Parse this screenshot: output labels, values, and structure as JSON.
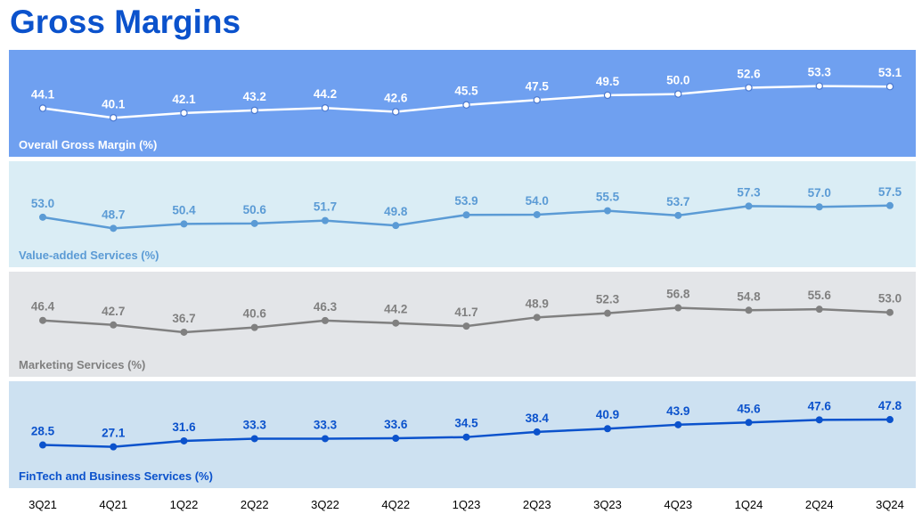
{
  "title": "Gross Margins",
  "chart_data": {
    "type": "line",
    "categories": [
      "3Q21",
      "4Q21",
      "1Q22",
      "2Q22",
      "3Q22",
      "4Q22",
      "1Q23",
      "2Q23",
      "3Q23",
      "4Q23",
      "1Q24",
      "2Q24",
      "3Q24"
    ],
    "panels": [
      {
        "name": "Overall Gross Margin (%)",
        "values": [
          44.1,
          40.1,
          42.1,
          43.2,
          44.2,
          42.6,
          45.5,
          47.5,
          49.5,
          50.0,
          52.6,
          53.3,
          53.1
        ],
        "background": "#6fa0f0",
        "line_color": "#ffffff",
        "label_color": "#ffffff",
        "name_color": "#ffffff",
        "ylim": [
          35,
          58
        ]
      },
      {
        "name": "Value-added Services (%)",
        "values": [
          53.0,
          48.7,
          50.4,
          50.6,
          51.7,
          49.8,
          53.9,
          54.0,
          55.5,
          53.7,
          57.3,
          57.0,
          57.5
        ],
        "background": "#daedf5",
        "line_color": "#5b9bd5",
        "label_color": "#5b9bd5",
        "name_color": "#5b9bd5",
        "ylim": [
          44,
          65
        ]
      },
      {
        "name": "Marketing Services (%)",
        "values": [
          46.4,
          42.7,
          36.7,
          40.6,
          46.3,
          44.2,
          41.7,
          48.9,
          52.3,
          56.8,
          54.8,
          55.6,
          53.0
        ],
        "background": "#e3e5e8",
        "line_color": "#808080",
        "label_color": "#808080",
        "name_color": "#808080",
        "ylim": [
          22,
          66
        ]
      },
      {
        "name": "FinTech and Business Services (%)",
        "values": [
          28.5,
          27.1,
          31.6,
          33.3,
          33.3,
          33.6,
          34.5,
          38.4,
          40.9,
          43.9,
          45.6,
          47.6,
          47.8
        ],
        "background": "#cde1f1",
        "line_color": "#0b52cc",
        "label_color": "#0b52cc",
        "name_color": "#0b52cc",
        "ylim": [
          16,
          58
        ]
      }
    ]
  }
}
